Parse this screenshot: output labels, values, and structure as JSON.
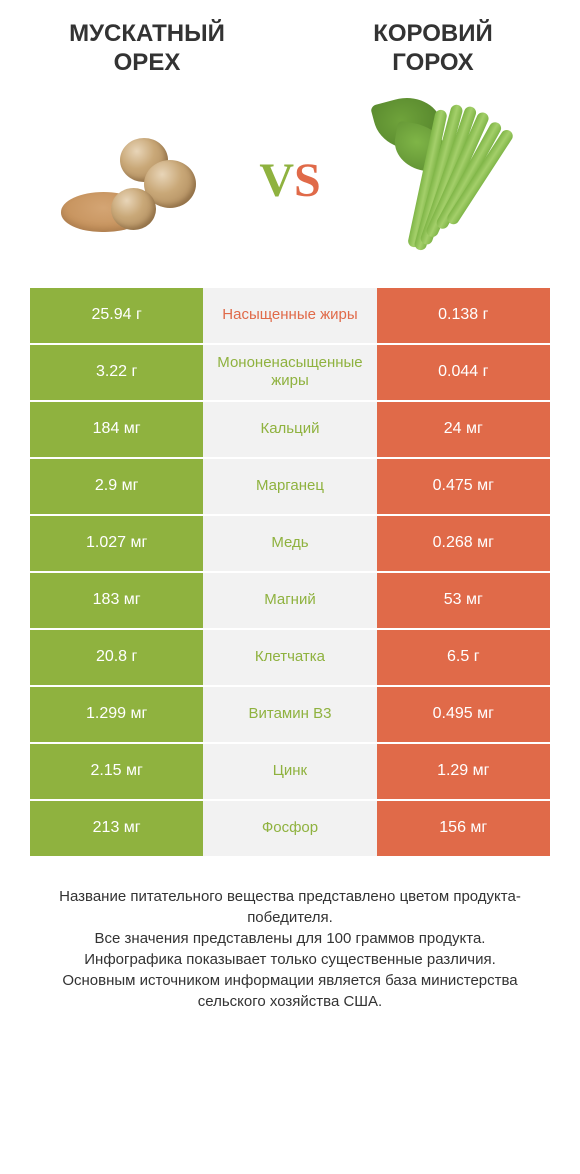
{
  "colors": {
    "green": "#8fb23f",
    "orange": "#e06a49",
    "mid_bg": "#f2f2f2",
    "text_dark": "#333333",
    "white": "#ffffff"
  },
  "header": {
    "left_title": "МУСКАТНЫЙ\nОРЕХ",
    "right_title": "КОРОВИЙ\nГОРОХ",
    "vs_v": "V",
    "vs_s": "S"
  },
  "table": {
    "left_color": "#8fb23f",
    "right_color": "#e06a49",
    "mid_bg": "#f2f2f2",
    "rows": [
      {
        "left": "25.94 г",
        "label": "Насыщенные жиры",
        "label_color": "#e06a49",
        "right": "0.138 г"
      },
      {
        "left": "3.22 г",
        "label": "Мононенасыщенные жиры",
        "label_color": "#8fb23f",
        "right": "0.044 г"
      },
      {
        "left": "184 мг",
        "label": "Кальций",
        "label_color": "#8fb23f",
        "right": "24 мг"
      },
      {
        "left": "2.9 мг",
        "label": "Марганец",
        "label_color": "#8fb23f",
        "right": "0.475 мг"
      },
      {
        "left": "1.027 мг",
        "label": "Медь",
        "label_color": "#8fb23f",
        "right": "0.268 мг"
      },
      {
        "left": "183 мг",
        "label": "Магний",
        "label_color": "#8fb23f",
        "right": "53 мг"
      },
      {
        "left": "20.8 г",
        "label": "Клетчатка",
        "label_color": "#8fb23f",
        "right": "6.5 г"
      },
      {
        "left": "1.299 мг",
        "label": "Витамин B3",
        "label_color": "#8fb23f",
        "right": "0.495 мг"
      },
      {
        "left": "2.15 мг",
        "label": "Цинк",
        "label_color": "#8fb23f",
        "right": "1.29 мг"
      },
      {
        "left": "213 мг",
        "label": "Фосфор",
        "label_color": "#8fb23f",
        "right": "156 мг"
      }
    ]
  },
  "footer": {
    "line1": "Название питательного вещества представлено цветом продукта-победителя.",
    "line2": "Все значения представлены для 100 граммов продукта.",
    "line3": "Инфографика показывает только существенные различия.",
    "line4": "Основным источником информации является база министерства сельского хозяйства США."
  }
}
